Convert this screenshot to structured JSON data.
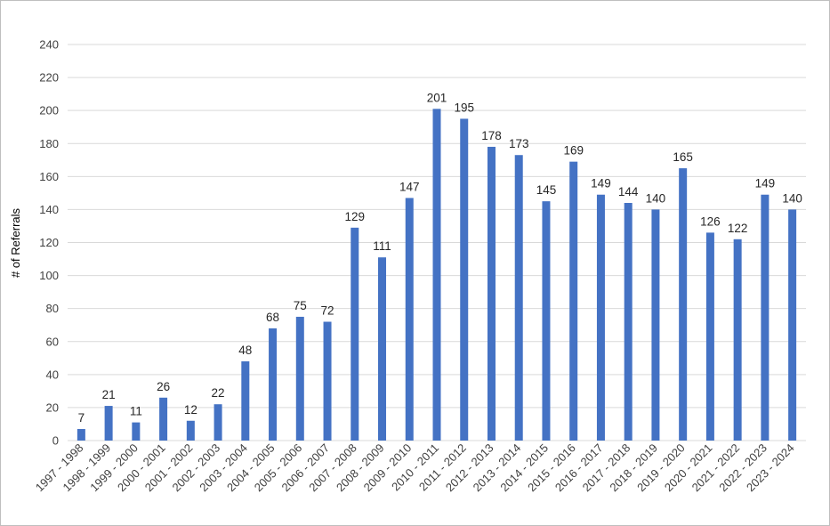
{
  "chart_data": {
    "type": "bar",
    "ylabel": "# of Referrals",
    "ylim": [
      0,
      240
    ],
    "yticks": [
      0,
      20,
      40,
      60,
      80,
      100,
      120,
      140,
      160,
      180,
      200,
      220,
      240
    ],
    "grid": true,
    "data_labels": true,
    "bar_color": "#4472C4",
    "categories": [
      "1997 - 1998",
      "1998 - 1999",
      "1999 - 2000",
      "2000 - 2001",
      "2001 - 2002",
      "2002 - 2003",
      "2003 - 2004",
      "2004 - 2005",
      "2005 - 2006",
      "2006 - 2007",
      "2007 - 2008",
      "2008 - 2009",
      "2009 - 2010",
      "2010 - 2011",
      "2011 - 2012",
      "2012 - 2013",
      "2013 - 2014",
      "2014 - 2015",
      "2015 - 2016",
      "2016 - 2017",
      "2017 - 2018",
      "2018 - 2019",
      "2019 - 2020",
      "2020 - 2021",
      "2021 - 2022",
      "2022 - 2023",
      "2023 - 2024"
    ],
    "values": [
      7,
      21,
      11,
      26,
      12,
      22,
      48,
      68,
      75,
      72,
      129,
      111,
      147,
      201,
      195,
      178,
      173,
      145,
      169,
      149,
      144,
      140,
      165,
      126,
      122,
      149,
      140
    ]
  }
}
